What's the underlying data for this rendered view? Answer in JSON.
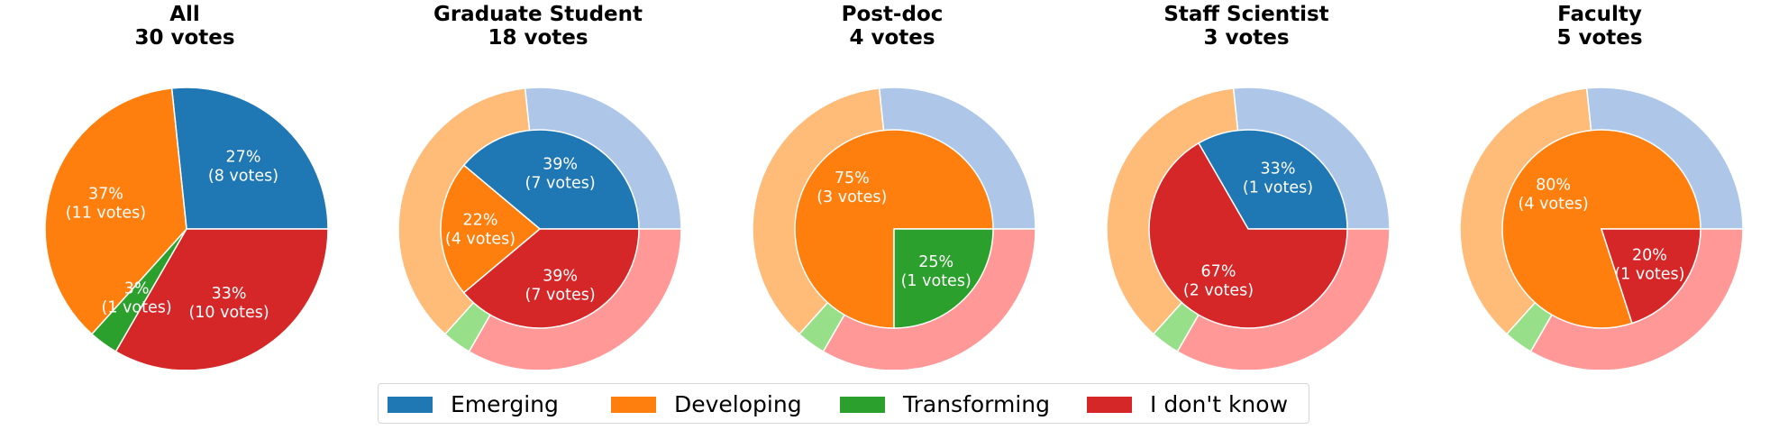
{
  "categories": [
    "Emerging",
    "Developing",
    "Transforming",
    "I don't know"
  ],
  "colors": {
    "main": [
      "#1f77b4",
      "#ff7f0e",
      "#2ca02c",
      "#d62728"
    ],
    "light": [
      "#aec7e8",
      "#ffbb78",
      "#98df8a",
      "#ff9896"
    ]
  },
  "legend": [
    "Emerging",
    "Developing",
    "Transforming",
    "I don't know"
  ],
  "chart_data": [
    {
      "type": "pie",
      "title_line1": "All",
      "title_line2": "30 votes",
      "values": [
        8,
        11,
        1,
        10
      ],
      "labels": [
        "27%\n(8 votes)",
        "37%\n(11 votes)",
        "3%\n(1 votes)",
        "33%\n(10 votes)"
      ]
    },
    {
      "type": "pie",
      "title_line1": "Graduate Student",
      "title_line2": "18 votes",
      "values": [
        7,
        4,
        0,
        7
      ],
      "labels": [
        "39%\n(7 votes)",
        "22%\n(4 votes)",
        "",
        "39%\n(7 votes)"
      ],
      "outer_ring_values": [
        8,
        11,
        1,
        10
      ]
    },
    {
      "type": "pie",
      "title_line1": "Post-doc",
      "title_line2": "4 votes",
      "values": [
        0,
        3,
        1,
        0
      ],
      "labels": [
        "",
        "75%\n(3 votes)",
        "25%\n(1 votes)",
        ""
      ],
      "outer_ring_values": [
        8,
        11,
        1,
        10
      ]
    },
    {
      "type": "pie",
      "title_line1": "Staff Scientist",
      "title_line2": "3 votes",
      "values": [
        1,
        0,
        0,
        2
      ],
      "labels": [
        "33%\n(1 votes)",
        "",
        "",
        "67%\n(2 votes)"
      ],
      "outer_ring_values": [
        8,
        11,
        1,
        10
      ]
    },
    {
      "type": "pie",
      "title_line1": "Faculty",
      "title_line2": "5 votes",
      "values": [
        0,
        4,
        0,
        1
      ],
      "labels": [
        "",
        "80%\n(4 votes)",
        "",
        "20%\n(1 votes)"
      ],
      "outer_ring_values": [
        8,
        11,
        1,
        10
      ]
    }
  ]
}
